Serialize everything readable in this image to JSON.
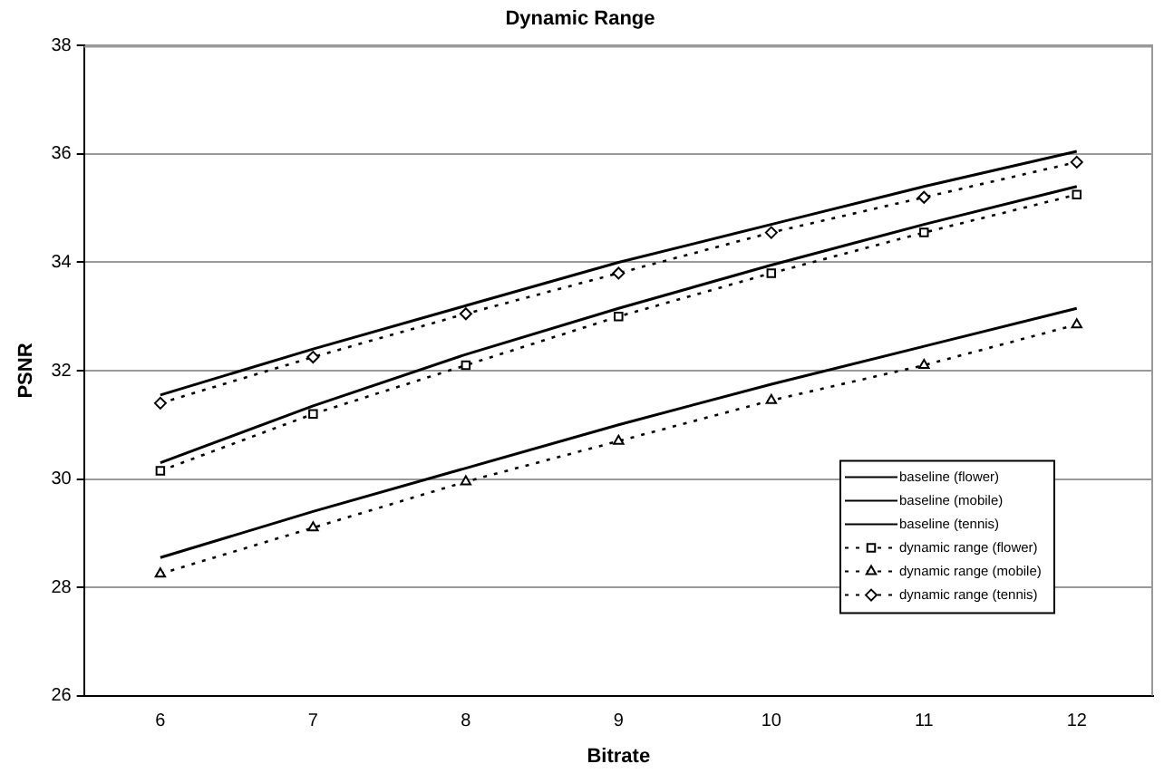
{
  "chart_data": {
    "type": "line",
    "title": "Dynamic Range",
    "xlabel": "Bitrate",
    "ylabel": "PSNR",
    "categories": [
      "6",
      "7",
      "8",
      "9",
      "10",
      "11",
      "12"
    ],
    "ylim": [
      26,
      38
    ],
    "yticks": [
      26,
      28,
      30,
      32,
      34,
      36,
      38
    ],
    "grid": "y",
    "legend": "bottom right",
    "series": [
      {
        "name": "baseline (flower)",
        "color": "#000000",
        "line_style": "solid",
        "marker": "none",
        "values": [
          30.3,
          31.35,
          32.3,
          33.15,
          33.95,
          34.7,
          35.4
        ]
      },
      {
        "name": "baseline (mobile)",
        "color": "#000000",
        "line_style": "solid",
        "marker": "none",
        "values": [
          28.55,
          29.4,
          30.2,
          31.0,
          31.75,
          32.45,
          33.15
        ]
      },
      {
        "name": "baseline (tennis)",
        "color": "#000000",
        "line_style": "solid",
        "marker": "none",
        "values": [
          31.55,
          32.4,
          33.2,
          34.0,
          34.7,
          35.4,
          36.05
        ]
      },
      {
        "name": "dynamic range (flower)",
        "color": "#000000",
        "line_style": "dotted",
        "marker": "square",
        "values": [
          30.15,
          31.2,
          32.1,
          33.0,
          33.8,
          34.55,
          35.25
        ]
      },
      {
        "name": "dynamic range (mobile)",
        "color": "#000000",
        "line_style": "dotted",
        "marker": "triangle",
        "values": [
          28.25,
          29.1,
          29.95,
          30.7,
          31.45,
          32.1,
          32.85
        ]
      },
      {
        "name": "dynamic range (tennis)",
        "color": "#000000",
        "line_style": "dotted",
        "marker": "diamond",
        "values": [
          31.4,
          32.25,
          33.05,
          33.8,
          34.55,
          35.2,
          35.85
        ]
      }
    ]
  }
}
